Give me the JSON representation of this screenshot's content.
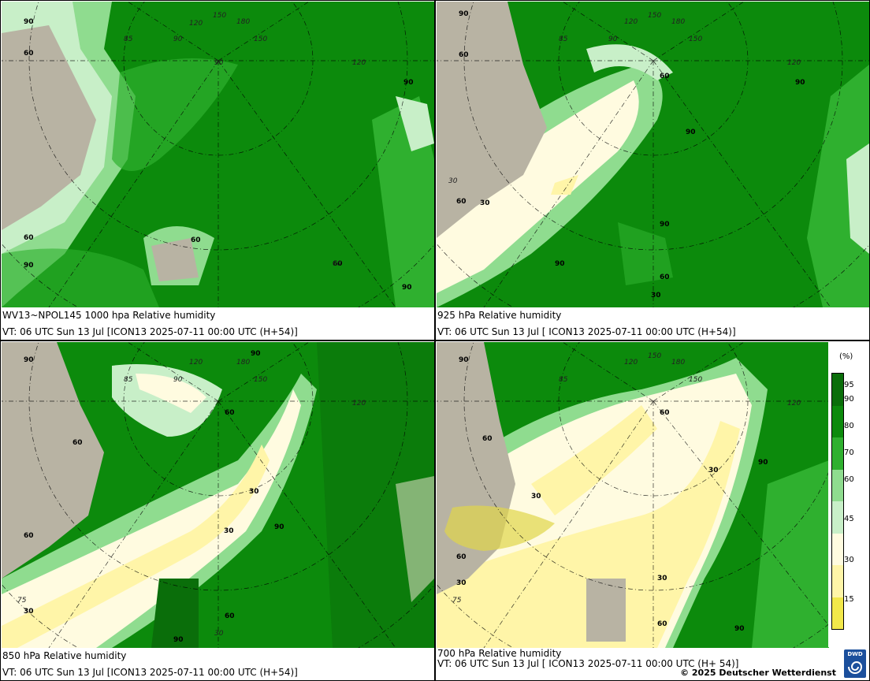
{
  "panels": [
    {
      "id": "p1",
      "title": "WV13~NPOL145 1000 hpa Relative humidity",
      "valid": "VT: 06 UTC Sun  13 Jul [ICON13 2025-07-11 00:00 UTC (H+54)]",
      "contour_labels": [
        "90",
        "60",
        "60",
        "90",
        "90",
        "60",
        "90",
        "60"
      ],
      "grid_labels": [
        "150",
        "120",
        "180",
        "150",
        "85",
        "90",
        "90",
        "120",
        "60"
      ]
    },
    {
      "id": "p2",
      "title": "925 hPa Relative humidity",
      "valid": "VT: 06 UTC Sun  13 Jul [ ICON13 2025-07-11 00:00 UTC (H+54)]",
      "contour_labels": [
        "90",
        "60",
        "60",
        "90",
        "90",
        "30",
        "60",
        "90",
        "90",
        "60",
        "30"
      ],
      "grid_labels": [
        "120",
        "150",
        "180",
        "150",
        "85",
        "120",
        "90",
        "30"
      ]
    },
    {
      "id": "p3",
      "title": "850 hPa  Relative humidity",
      "valid": "VT: 06 UTC Sun  13 Jul [ICON13 2025-07-11 00:00 UTC (H+54)]",
      "contour_labels": [
        "90",
        "90",
        "60",
        "60",
        "30",
        "90",
        "30",
        "60",
        "30",
        "60",
        "90"
      ],
      "grid_labels": [
        "120",
        "180",
        "150",
        "85",
        "90",
        "120",
        "75",
        "30"
      ]
    },
    {
      "id": "p4",
      "title": "700 hPa Relative humidity",
      "valid": "VT: 06 UTC Sun  13 Jul [ ICON13 2025-07-11 00:00 UTC  (H+ 54)]",
      "contour_labels": [
        "90",
        "60",
        "60",
        "90",
        "30",
        "30",
        "30",
        "60",
        "30",
        "60",
        "90"
      ],
      "grid_labels": [
        "120",
        "150",
        "180",
        "150",
        "85",
        "120",
        "75"
      ]
    }
  ],
  "legend": {
    "unit": "(%)",
    "ticks": [
      "95",
      "90",
      "80",
      "70",
      "60",
      "45",
      "30",
      "15"
    ],
    "colors": [
      "#0a6e0a",
      "#0c8a0c",
      "#2fb02f",
      "#8fdc8f",
      "#c8efc8",
      "#fffbe0",
      "#fff5a8",
      "#f2e84a"
    ]
  },
  "colors": {
    "very_wet": "#0a6e0a",
    "wet": "#0c8a0c",
    "moist": "#2fb02f",
    "light_moist": "#8fdc8f",
    "pale": "#c8efc8",
    "dryish": "#fffbe0",
    "dry": "#fff5a8",
    "very_dry": "#f2e84a",
    "land": "#b8b3a3"
  },
  "copyright": "© 2025 Deutscher Wetterdienst",
  "logo_text": "DWD"
}
